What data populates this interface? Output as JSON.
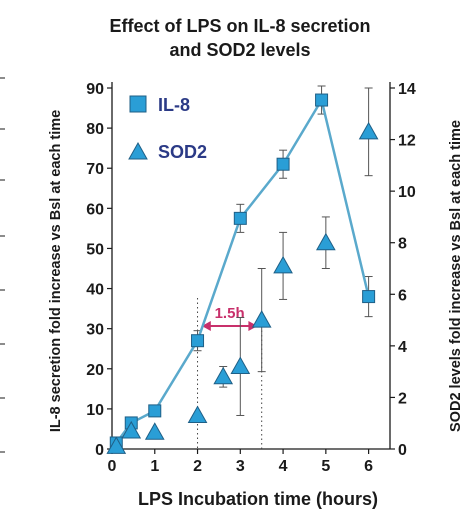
{
  "chart_data": {
    "type": "line",
    "title_lines": [
      "Effect of LPS on IL-8 secretion",
      "and SOD2 levels"
    ],
    "xlabel": "LPS Incubation time (hours)",
    "ylabel_left": "IL-8 secretion fold increase vs Bsl at each time",
    "ylabel_right": "SOD2 levels fold increase vs Bsl at each time",
    "xlim": [
      0,
      6.5
    ],
    "xticks": [
      0,
      1,
      2,
      3,
      4,
      5,
      6
    ],
    "ylim_left": [
      0,
      90
    ],
    "yticks_left": [
      0,
      10,
      20,
      30,
      40,
      50,
      60,
      70,
      80,
      90
    ],
    "ylim_right": [
      0,
      14
    ],
    "yticks_right": [
      0,
      2,
      4,
      6,
      8,
      10,
      12,
      14
    ],
    "grid": false,
    "legend_position": "top-left",
    "colors": {
      "il8": "#2a9ed6",
      "il8_line": "#5aa9cc",
      "sod2": "#2a9ed6",
      "annotation": "#c8306b",
      "axis": "#1a1a1a"
    },
    "series": [
      {
        "name": "IL-8",
        "axis": "left",
        "marker": "square",
        "connected": true,
        "x": [
          0.1,
          0.45,
          1,
          2,
          3,
          4,
          4.9,
          6
        ],
        "y": [
          1.5,
          6.5,
          9.5,
          27,
          57.5,
          71,
          87,
          38
        ],
        "err": [
          0,
          0,
          0,
          2.5,
          3.5,
          3.5,
          3.5,
          5
        ]
      },
      {
        "name": "SOD2",
        "axis": "right",
        "marker": "triangle",
        "connected": false,
        "x": [
          0.1,
          0.45,
          1,
          2,
          2.6,
          3,
          3.5,
          4,
          5,
          6
        ],
        "y": [
          0.1,
          0.7,
          0.65,
          1.3,
          2.8,
          3.2,
          5.0,
          7.1,
          8.0,
          12.3
        ],
        "err": [
          0,
          0,
          0,
          0,
          0.4,
          1.9,
          2.0,
          1.3,
          1.0,
          1.7
        ]
      }
    ],
    "annotations": [
      {
        "text": "1.5h",
        "x_from": 2,
        "x_to": 3.5
      }
    ]
  }
}
